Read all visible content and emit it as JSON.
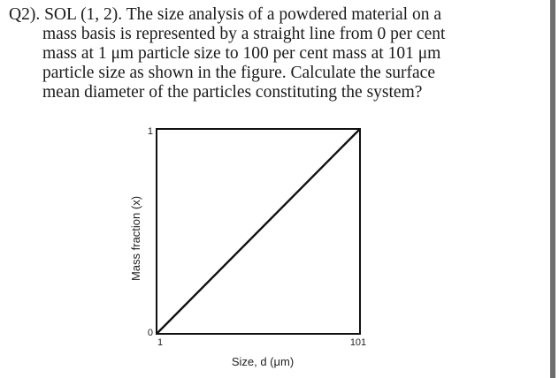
{
  "question": {
    "lines": [
      "Q2). SOL (1, 2). The size analysis of a powdered material on a",
      "mass basis is represented by a straight line from 0 per cent",
      "mass at 1 μm particle size to 100 per cent mass at 101 μm",
      "particle size as shown in the figure. Calculate the surface",
      "mean diameter of the particles constituting the system?"
    ]
  },
  "chart_data": {
    "type": "line",
    "xlabel": "Size, d (μm)",
    "ylabel": "Mass fraction (x)",
    "x_ticks": [
      "1",
      "101"
    ],
    "y_ticks": [
      "0",
      "1"
    ],
    "xlim": [
      1,
      101
    ],
    "ylim": [
      0,
      1
    ],
    "grid": false,
    "series": [
      {
        "x": [
          1,
          101
        ],
        "y": [
          0,
          1
        ]
      }
    ]
  },
  "colors": {
    "line": "#111111",
    "right_border": "#6e6e6e"
  }
}
